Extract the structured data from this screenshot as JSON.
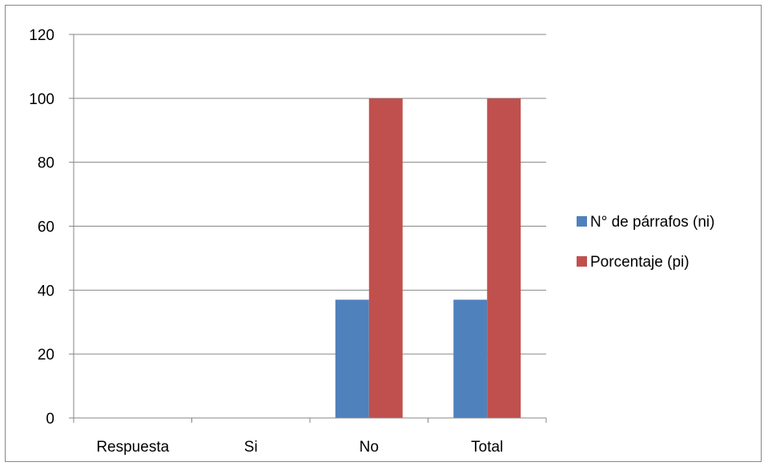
{
  "chart_data": {
    "type": "bar",
    "title": "",
    "xlabel": "",
    "ylabel": "",
    "categories": [
      "Respuesta",
      "Si",
      "No",
      "Total"
    ],
    "series": [
      {
        "name": "N° de párrafos (ni)",
        "color": "#4F81BD",
        "values": [
          0,
          0,
          37,
          37
        ]
      },
      {
        "name": "Porcentaje (pi)",
        "color": "#C0504D",
        "values": [
          0,
          0,
          100,
          100
        ]
      }
    ],
    "ylim": [
      0,
      120
    ],
    "yticks": [
      0,
      20,
      40,
      60,
      80,
      100,
      120
    ],
    "grid": true,
    "legend": "right"
  }
}
